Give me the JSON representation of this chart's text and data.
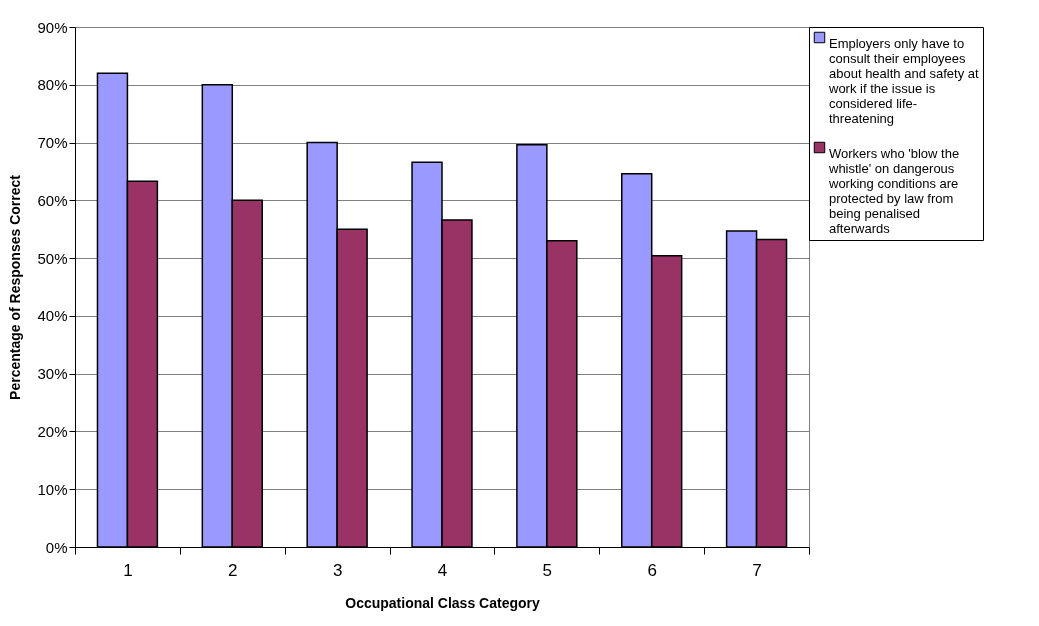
{
  "chart_data": {
    "type": "bar",
    "xlabel": "Occupational Class Category",
    "ylabel": "Percentage of Responses Correct",
    "categories": [
      "1",
      "2",
      "3",
      "4",
      "5",
      "6",
      "7"
    ],
    "series": [
      {
        "name": "Employers only have to consult their employees about health and safety at work if the issue is considered life-threatening",
        "color": "#9999ff",
        "values": [
          82,
          80,
          70,
          66.6,
          69.6,
          64.6,
          54.7
        ]
      },
      {
        "name": "Workers who 'blow the whistle' on dangerous working conditions are protected by law from being penalised afterwards",
        "color": "#993366",
        "values": [
          63.3,
          60,
          55,
          56.6,
          53,
          50.4,
          53.2
        ]
      }
    ],
    "ylim": [
      0,
      90
    ],
    "yticks": [
      {
        "value": 0,
        "label": "0%"
      },
      {
        "value": 10,
        "label": "10%"
      },
      {
        "value": 20,
        "label": "20%"
      },
      {
        "value": 30,
        "label": "30%"
      },
      {
        "value": 40,
        "label": "40%"
      },
      {
        "value": 50,
        "label": "50%"
      },
      {
        "value": 60,
        "label": "60%"
      },
      {
        "value": 70,
        "label": "70%"
      },
      {
        "value": 80,
        "label": "80%"
      },
      {
        "value": 90,
        "label": "90%"
      }
    ],
    "grid": "y",
    "legend": "right"
  }
}
